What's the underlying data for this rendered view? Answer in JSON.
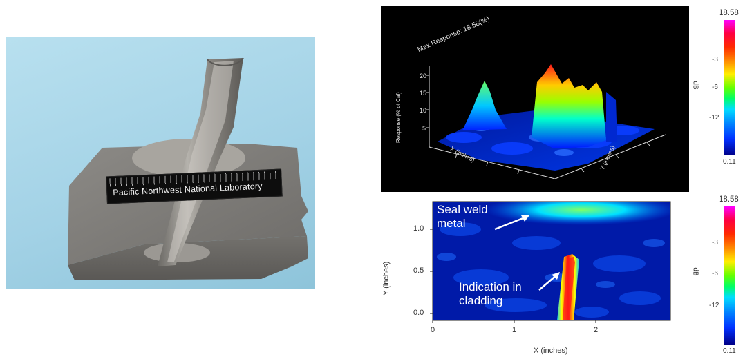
{
  "photo": {
    "label": "Pacific Northwest National Laboratory"
  },
  "plot3d": {
    "title": "Max Response:  18.58(%)",
    "zlabel": "Response (% of Cal)",
    "xlabel": "X (inches)",
    "ylabel": "Y (inches)",
    "z_ticks": [
      "20",
      "15",
      "10",
      "5"
    ],
    "colorbar": {
      "max": "18.58",
      "min": "0.11",
      "unit": "dB",
      "ticks": [
        "-3",
        "-6",
        "-12"
      ]
    }
  },
  "plot2d": {
    "annotations": {
      "seal_weld": [
        "Seal weld",
        "metal"
      ],
      "indication": [
        "Indication in",
        "cladding"
      ]
    },
    "colorbar": {
      "max": "18.58",
      "min": "0.11",
      "unit": "dB",
      "ticks": [
        "-3",
        "-6",
        "-12"
      ]
    }
  },
  "chart_data": {
    "type": "heatmap",
    "xlabel": "X (inches)",
    "ylabel": "Y (inches)",
    "xlim": [
      0,
      2.9
    ],
    "ylim": [
      -0.05,
      1.35
    ],
    "x_ticks": [
      0,
      1,
      2
    ],
    "y_ticks": [
      "0.0",
      "0.5",
      "1.0"
    ],
    "colorscale": {
      "max": 18.58,
      "min": 0.11,
      "unit": "dB",
      "ticks": [
        -3,
        -6,
        -12
      ]
    }
  }
}
